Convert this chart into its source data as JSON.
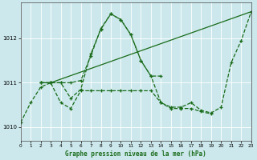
{
  "background_color": "#cce8ec",
  "grid_color": "#ffffff",
  "line_color": "#1a6b1a",
  "title": "Graphe pression niveau de la mer (hPa)",
  "xlim": [
    0,
    23
  ],
  "ylim": [
    1009.7,
    1012.8
  ],
  "yticks": [
    1010,
    1011,
    1012
  ],
  "xticks": [
    0,
    1,
    2,
    3,
    4,
    5,
    6,
    7,
    8,
    9,
    10,
    11,
    12,
    13,
    14,
    15,
    16,
    17,
    18,
    19,
    20,
    21,
    22,
    23
  ],
  "series": [
    {
      "x": [
        0,
        1,
        2,
        3,
        4,
        5,
        6,
        7,
        8,
        9,
        10,
        11,
        12,
        13,
        14,
        15,
        16,
        17,
        18,
        19,
        20,
        21,
        22,
        23
      ],
      "y": [
        1010.1,
        1010.55,
        1010.9,
        1011.0,
        1011.0,
        1010.65,
        1010.85,
        1011.65,
        1012.2,
        1012.55,
        1012.42,
        1012.08,
        1011.5,
        1011.15,
        1010.55,
        1010.45,
        1010.45,
        1010.55,
        1010.38,
        1010.32,
        1010.45,
        1011.45,
        1011.95,
        1012.6
      ],
      "linestyle": "--"
    },
    {
      "x": [
        2,
        3,
        23
      ],
      "y": [
        1011.0,
        1011.0,
        1012.6
      ],
      "linestyle": "-"
    },
    {
      "x": [
        2,
        3,
        4,
        5,
        6,
        7,
        8,
        9,
        10,
        11,
        12,
        13,
        14,
        15,
        16,
        17,
        18,
        19
      ],
      "y": [
        1011.0,
        1011.0,
        1010.55,
        1010.42,
        1010.82,
        1010.82,
        1010.82,
        1010.82,
        1010.82,
        1010.82,
        1010.82,
        1010.82,
        1010.55,
        1010.42,
        1010.42,
        1010.42,
        1010.35,
        1010.3
      ],
      "linestyle": "--"
    },
    {
      "x": [
        2,
        3,
        4,
        5,
        6,
        7,
        8,
        9,
        10,
        11,
        12,
        13,
        14
      ],
      "y": [
        1011.0,
        1011.0,
        1011.0,
        1011.0,
        1011.05,
        1011.6,
        1012.22,
        1012.55,
        1012.42,
        1012.08,
        1011.5,
        1011.15,
        1011.15
      ],
      "linestyle": "--"
    }
  ]
}
